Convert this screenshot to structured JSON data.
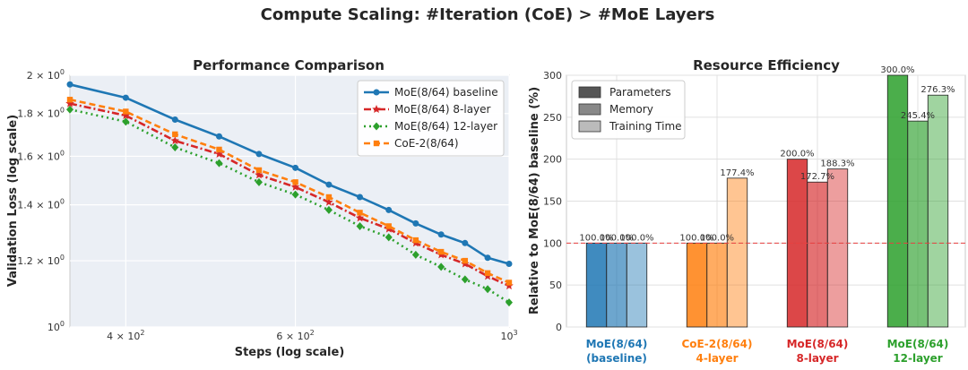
{
  "suptitle": "Compute Scaling: #Iteration (CoE) > #MoE Layers",
  "chart_data": [
    {
      "type": "line",
      "title": "Performance Comparison",
      "xlabel": "Steps (log scale)",
      "ylabel": "Validation Loss (log scale)",
      "xscale": "log",
      "yscale": "log",
      "xlim": [
        350,
        1000
      ],
      "ylim": [
        1.0,
        2.0
      ],
      "xticks": [
        {
          "value": 400,
          "label": "4 × 10",
          "exp": "2"
        },
        {
          "value": 600,
          "label": "6 × 10",
          "exp": "2"
        },
        {
          "value": 1000,
          "label": "10",
          "exp": "3"
        }
      ],
      "yticks": [
        {
          "value": 1.0,
          "label": "10",
          "exp": "0"
        },
        {
          "value": 1.2,
          "label": "1.2 × 10",
          "exp": "0"
        },
        {
          "value": 1.4,
          "label": "1.4 × 10",
          "exp": "0"
        },
        {
          "value": 1.6,
          "label": "1.6 × 10",
          "exp": "0"
        },
        {
          "value": 1.8,
          "label": "1.8 × 10",
          "exp": "0"
        },
        {
          "value": 2.0,
          "label": "2 × 10",
          "exp": "0"
        }
      ],
      "grid": true,
      "legend_position": "top-right",
      "series": [
        {
          "name": "MoE(8/64) baseline",
          "color": "#1f77b4",
          "style": "solid",
          "marker": "circle",
          "x": [
            350,
            400,
            450,
            500,
            550,
            600,
            650,
            700,
            750,
            800,
            850,
            900,
            950,
            1000
          ],
          "y": [
            1.95,
            1.88,
            1.77,
            1.69,
            1.61,
            1.55,
            1.48,
            1.43,
            1.38,
            1.33,
            1.29,
            1.26,
            1.21,
            1.19
          ]
        },
        {
          "name": "MoE(8/64) 8-layer",
          "color": "#d62728",
          "style": "dashdot",
          "marker": "star",
          "x": [
            350,
            400,
            450,
            500,
            550,
            600,
            650,
            700,
            750,
            800,
            850,
            900,
            950,
            1000
          ],
          "y": [
            1.85,
            1.79,
            1.67,
            1.61,
            1.52,
            1.47,
            1.41,
            1.35,
            1.31,
            1.26,
            1.22,
            1.19,
            1.15,
            1.12
          ]
        },
        {
          "name": "MoE(8/64) 12-layer",
          "color": "#2ca02c",
          "style": "dotted",
          "marker": "diamond",
          "x": [
            350,
            400,
            450,
            500,
            550,
            600,
            650,
            700,
            750,
            800,
            850,
            900,
            950,
            1000
          ],
          "y": [
            1.82,
            1.76,
            1.64,
            1.57,
            1.49,
            1.44,
            1.38,
            1.32,
            1.28,
            1.22,
            1.18,
            1.14,
            1.11,
            1.07
          ]
        },
        {
          "name": "CoE-2(8/64)",
          "color": "#ff7f0e",
          "style": "dashed",
          "marker": "square",
          "x": [
            350,
            400,
            450,
            500,
            550,
            600,
            650,
            700,
            750,
            800,
            850,
            900,
            950,
            1000
          ],
          "y": [
            1.87,
            1.81,
            1.7,
            1.63,
            1.54,
            1.49,
            1.43,
            1.37,
            1.32,
            1.27,
            1.23,
            1.2,
            1.16,
            1.13
          ]
        }
      ]
    },
    {
      "type": "bar",
      "title": "Resource Efficiency",
      "ylabel": "Relative to MoE(8/64) baseline (%)",
      "ylim": [
        0,
        300
      ],
      "yticks": [
        0,
        50,
        100,
        150,
        200,
        250,
        300
      ],
      "reference_line": 100,
      "grid": true,
      "legend_position": "top-left",
      "legend": [
        {
          "name": "Parameters",
          "shade": "#555555",
          "alpha": 0.85
        },
        {
          "name": "Memory",
          "shade": "#888888",
          "alpha": 0.65
        },
        {
          "name": "Training Time",
          "shade": "#bbbbbb",
          "alpha": 0.45
        }
      ],
      "groups": [
        {
          "label_line1": "MoE(8/64)",
          "label_line2": "(baseline)",
          "color": "#1f77b4",
          "bars": [
            {
              "metric": "Parameters",
              "value": 100.0,
              "label": "100.0%"
            },
            {
              "metric": "Memory",
              "value": 100.0,
              "label": "100.0%"
            },
            {
              "metric": "Training Time",
              "value": 100.0,
              "label": "100.0%"
            }
          ]
        },
        {
          "label_line1": "CoE-2(8/64)",
          "label_line2": "4-layer",
          "color": "#ff7f0e",
          "bars": [
            {
              "metric": "Parameters",
              "value": 100.0,
              "label": "100.0%"
            },
            {
              "metric": "Memory",
              "value": 100.0,
              "label": "100.0%"
            },
            {
              "metric": "Training Time",
              "value": 177.4,
              "label": "177.4%"
            }
          ]
        },
        {
          "label_line1": "MoE(8/64)",
          "label_line2": "8-layer",
          "color": "#d62728",
          "bars": [
            {
              "metric": "Parameters",
              "value": 200.0,
              "label": "200.0%"
            },
            {
              "metric": "Memory",
              "value": 172.7,
              "label": "172.7%"
            },
            {
              "metric": "Training Time",
              "value": 188.3,
              "label": "188.3%"
            }
          ]
        },
        {
          "label_line1": "MoE(8/64)",
          "label_line2": "12-layer",
          "color": "#2ca02c",
          "bars": [
            {
              "metric": "Parameters",
              "value": 300.0,
              "label": "300.0%"
            },
            {
              "metric": "Memory",
              "value": 245.4,
              "label": "245.4%"
            },
            {
              "metric": "Training Time",
              "value": 276.3,
              "label": "276.3%"
            }
          ]
        }
      ]
    }
  ]
}
